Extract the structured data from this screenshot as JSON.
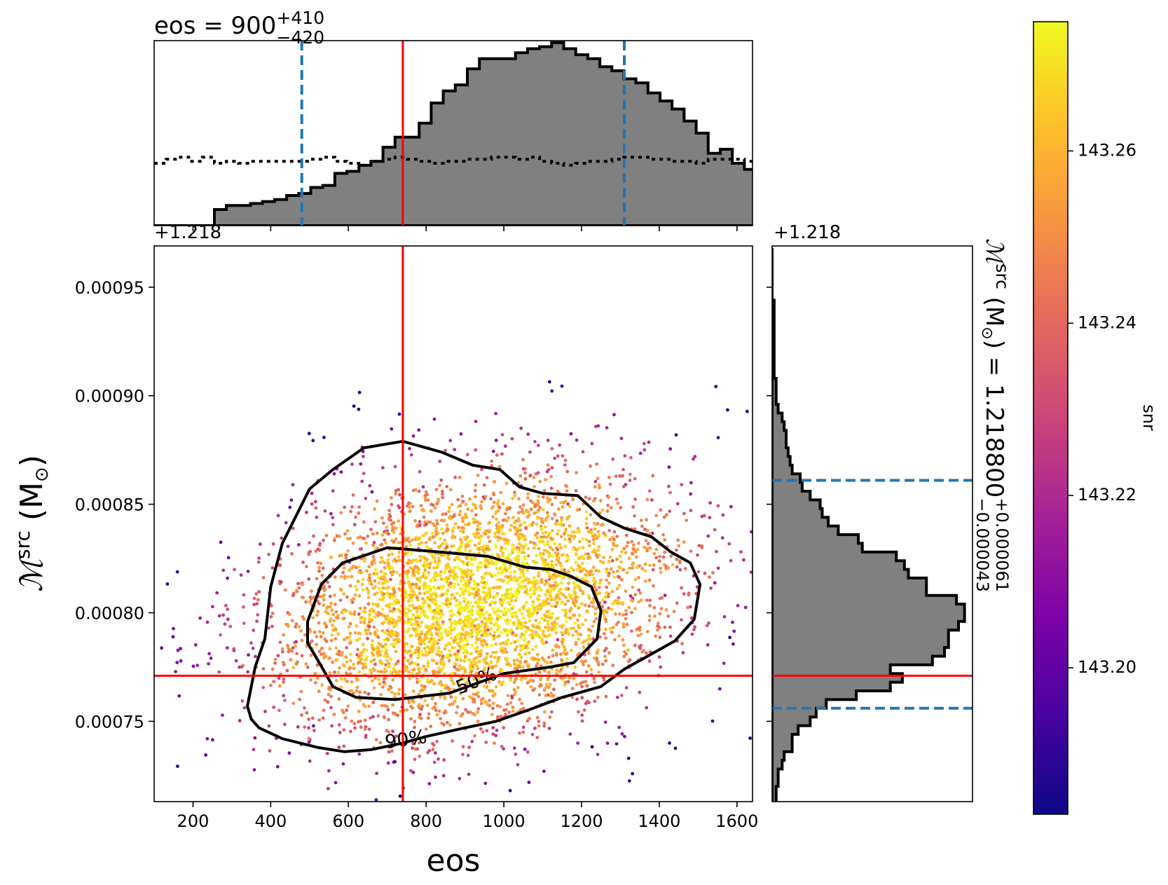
{
  "chart_data": {
    "type": "scatter",
    "title": "eos = 900^{+410}_{-420}",
    "title_parts": {
      "param": "eos",
      "median": "900",
      "plus": "+410",
      "minus": "−420"
    },
    "xlabel": "eos",
    "ylabel_base": "ℳ",
    "ylabel_sup": "src",
    "ylabel_unit": " (M",
    "ylabel_unit_end": ")",
    "y_offset_label": "+1.218",
    "right_title": {
      "symbol": "ℳ",
      "sup": "src",
      "unit": " (M",
      "equals": ") = 1.218800",
      "plus": "+0.000061",
      "minus": "−0.000043"
    },
    "colorbar_label": "snr",
    "colorbar_range": [
      143.183,
      143.275
    ],
    "colorbar_ticks": [
      "143.20",
      "143.22",
      "143.24",
      "143.26"
    ],
    "colorbar_tick_values": [
      143.2,
      143.22,
      143.24,
      143.26
    ],
    "colormap": "plasma",
    "xlim": [
      100,
      1640
    ],
    "ylim": [
      0.000713,
      0.000969
    ],
    "x_ticks": [
      200,
      400,
      600,
      800,
      1000,
      1200,
      1400,
      1600
    ],
    "x_tick_labels": [
      "200",
      "400",
      "600",
      "800",
      "1000",
      "1200",
      "1400",
      "1600"
    ],
    "y_ticks": [
      0.00075,
      0.0008,
      0.00085,
      0.0009,
      0.00095
    ],
    "y_tick_labels": [
      "0.00075",
      "0.00080",
      "0.00085",
      "0.00090",
      "0.00095"
    ],
    "injection": {
      "x": 740,
      "y": 0.000771
    },
    "credible_interval_x": [
      480,
      1310
    ],
    "credible_interval_y": [
      0.000756,
      0.000861
    ],
    "contour_labels": [
      "50%",
      "90%"
    ],
    "contour_50": [
      [
        495,
        0.000796
      ],
      [
        530,
        0.000813
      ],
      [
        585,
        0.000823
      ],
      [
        700,
        0.00083
      ],
      [
        835,
        0.000828
      ],
      [
        960,
        0.000826
      ],
      [
        1055,
        0.000821
      ],
      [
        1120,
        0.00082
      ],
      [
        1170,
        0.000817
      ],
      [
        1225,
        0.000812
      ],
      [
        1250,
        0.000801
      ],
      [
        1240,
        0.000788
      ],
      [
        1180,
        0.000777
      ],
      [
        1120,
        0.000775
      ],
      [
        1000,
        0.000772
      ],
      [
        860,
        0.000763
      ],
      [
        720,
        0.00076
      ],
      [
        620,
        0.000761
      ],
      [
        560,
        0.000766
      ],
      [
        525,
        0.000777
      ],
      [
        495,
        0.000786
      ]
    ],
    "contour_90": [
      [
        340,
        0.000757
      ],
      [
        360,
        0.000775
      ],
      [
        385,
        0.000788
      ],
      [
        400,
        0.000812
      ],
      [
        430,
        0.000832
      ],
      [
        500,
        0.000857
      ],
      [
        560,
        0.000866
      ],
      [
        640,
        0.000876
      ],
      [
        740,
        0.000879
      ],
      [
        840,
        0.000874
      ],
      [
        920,
        0.000868
      ],
      [
        990,
        0.000866
      ],
      [
        1040,
        0.000858
      ],
      [
        1100,
        0.000855
      ],
      [
        1190,
        0.000854
      ],
      [
        1250,
        0.000844
      ],
      [
        1310,
        0.000839
      ],
      [
        1380,
        0.000835
      ],
      [
        1430,
        0.000828
      ],
      [
        1480,
        0.000823
      ],
      [
        1505,
        0.000813
      ],
      [
        1490,
        0.000797
      ],
      [
        1440,
        0.000787
      ],
      [
        1380,
        0.000781
      ],
      [
        1310,
        0.000774
      ],
      [
        1250,
        0.000766
      ],
      [
        1150,
        0.000761
      ],
      [
        1060,
        0.000755
      ],
      [
        980,
        0.00075
      ],
      [
        900,
        0.000747
      ],
      [
        800,
        0.000743
      ],
      [
        740,
        0.00074
      ],
      [
        660,
        0.000737
      ],
      [
        590,
        0.000736
      ],
      [
        520,
        0.000738
      ],
      [
        430,
        0.000742
      ],
      [
        370,
        0.000747
      ],
      [
        350,
        0.000751
      ]
    ],
    "hist_x": {
      "bin_edges_start": 100,
      "bin_width": 31,
      "posterior_counts": [
        0,
        0,
        0,
        0,
        0,
        0.08,
        0.1,
        0.1,
        0.11,
        0.12,
        0.13,
        0.15,
        0.16,
        0.19,
        0.2,
        0.26,
        0.27,
        0.3,
        0.32,
        0.39,
        0.44,
        0.44,
        0.51,
        0.61,
        0.67,
        0.7,
        0.78,
        0.83,
        0.83,
        0.83,
        0.86,
        0.88,
        0.89,
        0.91,
        0.88,
        0.85,
        0.83,
        0.79,
        0.77,
        0.73,
        0.71,
        0.66,
        0.62,
        0.58,
        0.52,
        0.46,
        0.36,
        0.38,
        0.31,
        0.28,
        0.25,
        0.23,
        0.18,
        0.16,
        0.15,
        0.13,
        0.11,
        0.08,
        0.04,
        0.04,
        0.03
      ],
      "prior_counts": [
        0.31,
        0.33,
        0.34,
        0.32,
        0.34,
        0.31,
        0.32,
        0.31,
        0.32,
        0.32,
        0.32,
        0.32,
        0.32,
        0.33,
        0.34,
        0.32,
        0.31,
        0.3,
        0.32,
        0.33,
        0.34,
        0.33,
        0.32,
        0.31,
        0.32,
        0.32,
        0.33,
        0.33,
        0.34,
        0.34,
        0.33,
        0.34,
        0.32,
        0.31,
        0.3,
        0.31,
        0.32,
        0.32,
        0.33,
        0.34,
        0.34,
        0.33,
        0.33,
        0.32,
        0.32,
        0.31,
        0.33,
        0.33,
        0.33,
        0.32,
        0.31,
        0.32,
        0.33,
        0.36,
        0.37,
        0.36,
        0.32,
        0.31,
        0.33,
        0.31,
        0.35
      ]
    },
    "hist_y": {
      "bin_centers": [
        0.000714,
        0.000718,
        0.000722,
        0.000726,
        0.00073,
        0.000734,
        0.000738,
        0.000742,
        0.000746,
        0.00075,
        0.000754,
        0.000758,
        0.000762,
        0.000766,
        0.00077,
        0.000774,
        0.000778,
        0.000782,
        0.000786,
        0.00079,
        0.000794,
        0.000798,
        0.000802,
        0.000806,
        0.00081,
        0.000814,
        0.000818,
        0.000822,
        0.000826,
        0.00083,
        0.000834,
        0.000838,
        0.000842,
        0.000846,
        0.00085,
        0.000854,
        0.000858,
        0.000862,
        0.000866,
        0.00087,
        0.000874,
        0.000878,
        0.000882,
        0.000886,
        0.00089,
        0.000894,
        0.000898,
        0.000902,
        0.000906,
        0.00091,
        0.000914,
        0.000918,
        0.000922,
        0.000926,
        0.00093,
        0.000934,
        0.000938,
        0.000942,
        0.000946,
        0.00095,
        0.000954,
        0.000958,
        0.000962,
        0.000966
      ],
      "counts": [
        0.02,
        0.02,
        0.03,
        0.03,
        0.05,
        0.06,
        0.1,
        0.1,
        0.13,
        0.19,
        0.22,
        0.27,
        0.42,
        0.59,
        0.65,
        0.59,
        0.8,
        0.86,
        0.88,
        0.88,
        0.93,
        0.96,
        0.96,
        0.92,
        0.77,
        0.77,
        0.68,
        0.66,
        0.62,
        0.45,
        0.43,
        0.33,
        0.28,
        0.25,
        0.24,
        0.19,
        0.15,
        0.14,
        0.1,
        0.09,
        0.08,
        0.07,
        0.07,
        0.06,
        0.05,
        0.03,
        0.02,
        0.02,
        0.02,
        0.01,
        0.01,
        0.01,
        0.01,
        0.01,
        0.01,
        0.01,
        0.01,
        0.01,
        0.0,
        0.0,
        0.0,
        0.0,
        0.0,
        0.0
      ]
    },
    "scatter": {
      "n_points": 4200,
      "mean_x": 930,
      "std_x": 260,
      "mean_y": 0.000805,
      "std_y": 3e-05,
      "correlation": 0.25
    }
  }
}
